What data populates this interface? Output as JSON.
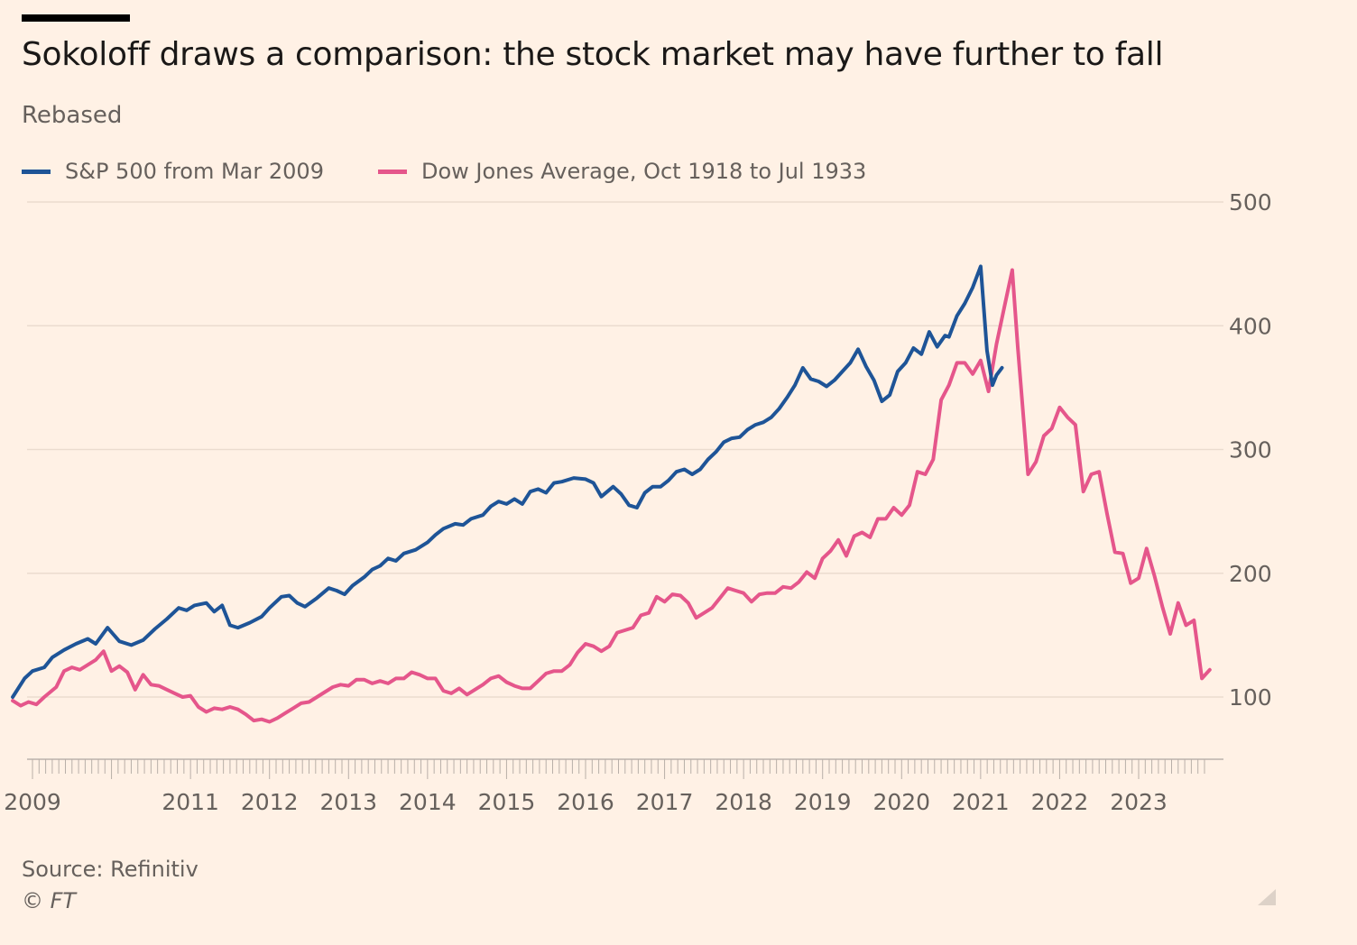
{
  "header": {
    "title": "Sokoloff draws a comparison: the stock market may have further to fall",
    "subtitle": "Rebased"
  },
  "footer": {
    "source": "Source: Refinitiv",
    "copyright": "© FT"
  },
  "colors": {
    "background": "#fff1e5",
    "sp500": "#1e5497",
    "dow": "#e5568b",
    "grid": "#ebdccf",
    "axis_text": "#66605c"
  },
  "chart_data": {
    "type": "line",
    "title": "Sokoloff draws a comparison: the stock market may have further to fall",
    "subtitle": "Rebased",
    "xlim": [
      2008.67,
      2023.9
    ],
    "ylim": [
      50,
      500
    ],
    "y_ticks": [
      100,
      200,
      300,
      400,
      500
    ],
    "x_ticks": [
      {
        "label": "2009",
        "value": 2009
      },
      {
        "label": "2011",
        "value": 2011
      },
      {
        "label": "2012",
        "value": 2012
      },
      {
        "label": "2013",
        "value": 2013
      },
      {
        "label": "2014",
        "value": 2014
      },
      {
        "label": "2015",
        "value": 2015
      },
      {
        "label": "2016",
        "value": 2016
      },
      {
        "label": "2017",
        "value": 2017
      },
      {
        "label": "2018",
        "value": 2018
      },
      {
        "label": "2019",
        "value": 2019
      },
      {
        "label": "2020",
        "value": 2020
      },
      {
        "label": "2021",
        "value": 2021
      },
      {
        "label": "2022",
        "value": 2022
      },
      {
        "label": "2023",
        "value": 2023
      }
    ],
    "grid": true,
    "y_axis_side": "right",
    "legend_position": "top-left",
    "series": [
      {
        "name": "S&P 500 from Mar 2009",
        "color": "#1e5497",
        "points": [
          [
            2008.75,
            100
          ],
          [
            2008.9,
            115
          ],
          [
            2009.0,
            121
          ],
          [
            2009.15,
            124
          ],
          [
            2009.25,
            132
          ],
          [
            2009.4,
            138
          ],
          [
            2009.55,
            143
          ],
          [
            2009.7,
            147
          ],
          [
            2009.8,
            143
          ],
          [
            2009.95,
            156
          ],
          [
            2010.1,
            145
          ],
          [
            2010.25,
            142
          ],
          [
            2010.4,
            146
          ],
          [
            2010.55,
            155
          ],
          [
            2010.7,
            163
          ],
          [
            2010.85,
            172
          ],
          [
            2010.95,
            170
          ],
          [
            2011.05,
            174
          ],
          [
            2011.2,
            176
          ],
          [
            2011.3,
            169
          ],
          [
            2011.4,
            174
          ],
          [
            2011.5,
            158
          ],
          [
            2011.6,
            156
          ],
          [
            2011.75,
            160
          ],
          [
            2011.9,
            165
          ],
          [
            2012.0,
            172
          ],
          [
            2012.15,
            181
          ],
          [
            2012.25,
            182
          ],
          [
            2012.35,
            176
          ],
          [
            2012.45,
            173
          ],
          [
            2012.6,
            180
          ],
          [
            2012.75,
            188
          ],
          [
            2012.85,
            186
          ],
          [
            2012.95,
            183
          ],
          [
            2013.05,
            190
          ],
          [
            2013.2,
            197
          ],
          [
            2013.3,
            203
          ],
          [
            2013.4,
            206
          ],
          [
            2013.5,
            212
          ],
          [
            2013.6,
            210
          ],
          [
            2013.7,
            216
          ],
          [
            2013.85,
            219
          ],
          [
            2014.0,
            225
          ],
          [
            2014.1,
            231
          ],
          [
            2014.2,
            236
          ],
          [
            2014.35,
            240
          ],
          [
            2014.45,
            239
          ],
          [
            2014.55,
            244
          ],
          [
            2014.7,
            247
          ],
          [
            2014.8,
            254
          ],
          [
            2014.9,
            258
          ],
          [
            2015.0,
            256
          ],
          [
            2015.1,
            260
          ],
          [
            2015.2,
            256
          ],
          [
            2015.3,
            266
          ],
          [
            2015.4,
            268
          ],
          [
            2015.5,
            265
          ],
          [
            2015.6,
            273
          ],
          [
            2015.7,
            274
          ],
          [
            2015.85,
            277
          ],
          [
            2016.0,
            276
          ],
          [
            2016.1,
            273
          ],
          [
            2016.2,
            262
          ],
          [
            2016.35,
            270
          ],
          [
            2016.45,
            264
          ],
          [
            2016.55,
            255
          ],
          [
            2016.65,
            253
          ],
          [
            2016.75,
            265
          ],
          [
            2016.85,
            270
          ],
          [
            2016.95,
            270
          ],
          [
            2017.05,
            275
          ],
          [
            2017.15,
            282
          ],
          [
            2017.25,
            284
          ],
          [
            2017.35,
            280
          ],
          [
            2017.45,
            284
          ],
          [
            2017.55,
            292
          ],
          [
            2017.65,
            298
          ],
          [
            2017.75,
            306
          ],
          [
            2017.85,
            309
          ],
          [
            2017.95,
            310
          ],
          [
            2018.05,
            316
          ],
          [
            2018.15,
            320
          ],
          [
            2018.25,
            322
          ],
          [
            2018.35,
            326
          ],
          [
            2018.45,
            333
          ],
          [
            2018.55,
            342
          ],
          [
            2018.65,
            352
          ],
          [
            2018.75,
            366
          ],
          [
            2018.85,
            357
          ],
          [
            2018.95,
            355
          ],
          [
            2019.05,
            351
          ],
          [
            2019.15,
            356
          ],
          [
            2019.25,
            363
          ],
          [
            2019.35,
            370
          ],
          [
            2019.45,
            381
          ],
          [
            2019.55,
            367
          ],
          [
            2019.65,
            356
          ],
          [
            2019.75,
            339
          ],
          [
            2019.85,
            344
          ],
          [
            2019.95,
            363
          ],
          [
            2020.05,
            370
          ],
          [
            2020.15,
            382
          ],
          [
            2020.25,
            377
          ],
          [
            2020.35,
            395
          ],
          [
            2020.45,
            383
          ],
          [
            2020.55,
            392
          ],
          [
            2020.6,
            391
          ],
          [
            2020.7,
            408
          ],
          [
            2020.8,
            418
          ],
          [
            2020.9,
            431
          ],
          [
            2021.0,
            448
          ],
          [
            2021.08,
            380
          ],
          [
            2021.15,
            352
          ],
          [
            2021.2,
            360
          ],
          [
            2021.27,
            366
          ]
        ]
      },
      {
        "name": "Dow Jones Average, Oct 1918 to Jul 1933",
        "color": "#e5568b",
        "points": [
          [
            2008.75,
            97
          ],
          [
            2008.85,
            93
          ],
          [
            2008.95,
            96
          ],
          [
            2009.05,
            94
          ],
          [
            2009.15,
            100
          ],
          [
            2009.3,
            108
          ],
          [
            2009.4,
            121
          ],
          [
            2009.5,
            124
          ],
          [
            2009.6,
            122
          ],
          [
            2009.7,
            126
          ],
          [
            2009.8,
            130
          ],
          [
            2009.9,
            137
          ],
          [
            2010.0,
            121
          ],
          [
            2010.1,
            125
          ],
          [
            2010.2,
            120
          ],
          [
            2010.3,
            106
          ],
          [
            2010.4,
            118
          ],
          [
            2010.5,
            110
          ],
          [
            2010.6,
            109
          ],
          [
            2010.7,
            106
          ],
          [
            2010.8,
            103
          ],
          [
            2010.9,
            100
          ],
          [
            2011.0,
            101
          ],
          [
            2011.1,
            92
          ],
          [
            2011.2,
            88
          ],
          [
            2011.3,
            91
          ],
          [
            2011.4,
            90
          ],
          [
            2011.5,
            92
          ],
          [
            2011.6,
            90
          ],
          [
            2011.7,
            86
          ],
          [
            2011.8,
            81
          ],
          [
            2011.9,
            82
          ],
          [
            2012.0,
            80
          ],
          [
            2012.1,
            83
          ],
          [
            2012.2,
            87
          ],
          [
            2012.3,
            91
          ],
          [
            2012.4,
            95
          ],
          [
            2012.5,
            96
          ],
          [
            2012.6,
            100
          ],
          [
            2012.7,
            104
          ],
          [
            2012.8,
            108
          ],
          [
            2012.9,
            110
          ],
          [
            2013.0,
            109
          ],
          [
            2013.1,
            114
          ],
          [
            2013.2,
            114
          ],
          [
            2013.3,
            111
          ],
          [
            2013.4,
            113
          ],
          [
            2013.5,
            111
          ],
          [
            2013.6,
            115
          ],
          [
            2013.7,
            115
          ],
          [
            2013.8,
            120
          ],
          [
            2013.9,
            118
          ],
          [
            2014.0,
            115
          ],
          [
            2014.1,
            115
          ],
          [
            2014.2,
            105
          ],
          [
            2014.3,
            103
          ],
          [
            2014.4,
            107
          ],
          [
            2014.5,
            102
          ],
          [
            2014.6,
            106
          ],
          [
            2014.7,
            110
          ],
          [
            2014.8,
            115
          ],
          [
            2014.9,
            117
          ],
          [
            2015.0,
            112
          ],
          [
            2015.1,
            109
          ],
          [
            2015.2,
            107
          ],
          [
            2015.3,
            107
          ],
          [
            2015.4,
            113
          ],
          [
            2015.5,
            119
          ],
          [
            2015.6,
            121
          ],
          [
            2015.7,
            121
          ],
          [
            2015.8,
            126
          ],
          [
            2015.9,
            136
          ],
          [
            2016.0,
            143
          ],
          [
            2016.1,
            141
          ],
          [
            2016.2,
            137
          ],
          [
            2016.3,
            141
          ],
          [
            2016.4,
            152
          ],
          [
            2016.5,
            154
          ],
          [
            2016.6,
            156
          ],
          [
            2016.7,
            166
          ],
          [
            2016.8,
            168
          ],
          [
            2016.9,
            181
          ],
          [
            2017.0,
            177
          ],
          [
            2017.1,
            183
          ],
          [
            2017.2,
            182
          ],
          [
            2017.3,
            176
          ],
          [
            2017.4,
            164
          ],
          [
            2017.5,
            168
          ],
          [
            2017.6,
            172
          ],
          [
            2017.7,
            180
          ],
          [
            2017.8,
            188
          ],
          [
            2017.9,
            186
          ],
          [
            2018.0,
            184
          ],
          [
            2018.1,
            177
          ],
          [
            2018.2,
            183
          ],
          [
            2018.3,
            184
          ],
          [
            2018.4,
            184
          ],
          [
            2018.5,
            189
          ],
          [
            2018.6,
            188
          ],
          [
            2018.7,
            193
          ],
          [
            2018.8,
            201
          ],
          [
            2018.9,
            196
          ],
          [
            2019.0,
            212
          ],
          [
            2019.1,
            218
          ],
          [
            2019.2,
            227
          ],
          [
            2019.3,
            214
          ],
          [
            2019.4,
            230
          ],
          [
            2019.5,
            233
          ],
          [
            2019.6,
            229
          ],
          [
            2019.7,
            244
          ],
          [
            2019.8,
            244
          ],
          [
            2019.9,
            253
          ],
          [
            2020.0,
            247
          ],
          [
            2020.1,
            255
          ],
          [
            2020.2,
            282
          ],
          [
            2020.3,
            280
          ],
          [
            2020.4,
            292
          ],
          [
            2020.5,
            340
          ],
          [
            2020.6,
            352
          ],
          [
            2020.7,
            370
          ],
          [
            2020.8,
            370
          ],
          [
            2020.9,
            361
          ],
          [
            2021.0,
            372
          ],
          [
            2021.1,
            347
          ],
          [
            2021.2,
            385
          ],
          [
            2021.3,
            415
          ],
          [
            2021.4,
            445
          ],
          [
            2021.47,
            383
          ],
          [
            2021.55,
            320
          ],
          [
            2021.6,
            280
          ],
          [
            2021.7,
            290
          ],
          [
            2021.8,
            311
          ],
          [
            2021.9,
            317
          ],
          [
            2022.0,
            334
          ],
          [
            2022.1,
            326
          ],
          [
            2022.2,
            320
          ],
          [
            2022.3,
            266
          ],
          [
            2022.4,
            280
          ],
          [
            2022.5,
            282
          ],
          [
            2022.6,
            248
          ],
          [
            2022.7,
            217
          ],
          [
            2022.8,
            216
          ],
          [
            2022.9,
            192
          ],
          [
            2023.0,
            196
          ],
          [
            2023.1,
            220
          ],
          [
            2023.2,
            198
          ],
          [
            2023.3,
            173
          ],
          [
            2023.4,
            151
          ],
          [
            2023.5,
            176
          ],
          [
            2023.6,
            158
          ],
          [
            2023.7,
            162
          ],
          [
            2023.8,
            115
          ],
          [
            2023.9,
            122
          ]
        ]
      }
    ]
  }
}
